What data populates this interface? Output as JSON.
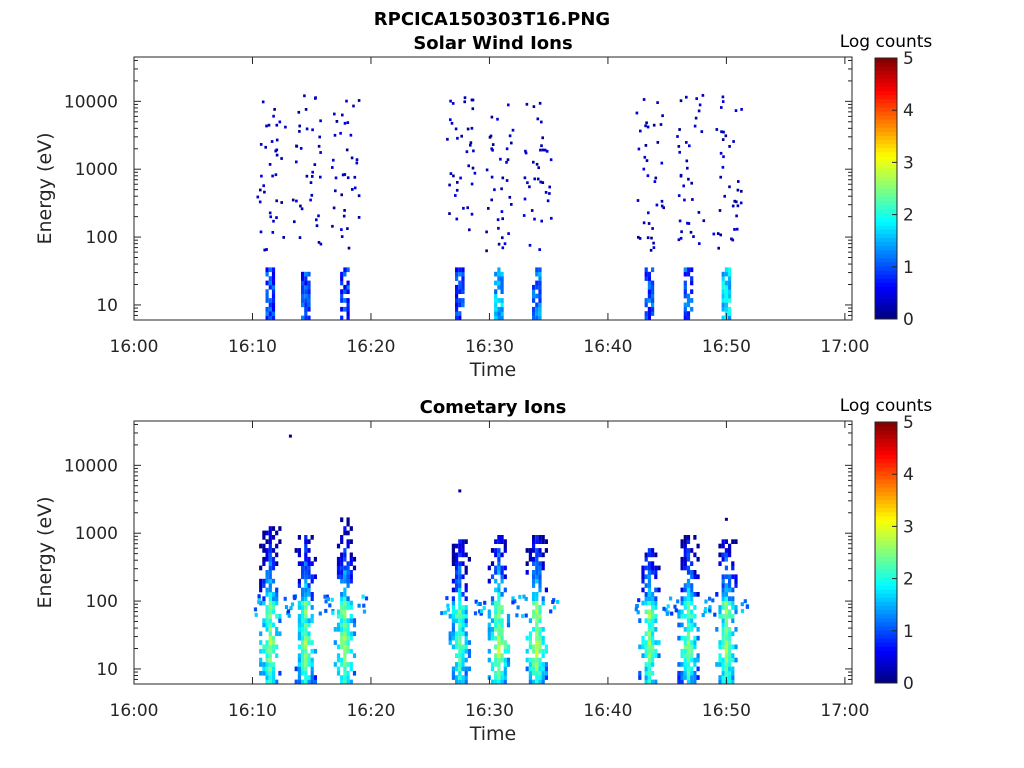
{
  "figure_title": "RPCICA150303T16.PNG",
  "colors": {
    "colormap": "jet",
    "axes": "#262626",
    "background": "#ffffff"
  },
  "chart_data": [
    {
      "type": "heatmap",
      "title": "Solar Wind Ions",
      "xlabel": "Time",
      "ylabel": "Energy (eV)",
      "x_ticks": [
        "16:00",
        "16:10",
        "16:20",
        "16:30",
        "16:40",
        "16:50",
        "17:00"
      ],
      "xlim_minutes_after_16:00": [
        0,
        60.6
      ],
      "y_ticks": [
        "10",
        "100",
        "1000",
        "10000"
      ],
      "yscale": "log",
      "ylim": [
        6,
        45000
      ],
      "colorbar": {
        "label": "Log counts",
        "ticks": [
          "0",
          "1",
          "2",
          "3",
          "4",
          "5"
        ],
        "range": [
          0,
          5
        ]
      },
      "scans": [
        {
          "time_minutes": 11.5,
          "energy_low_eV": [
            6,
            35
          ],
          "low_level_log_counts": 0.9,
          "scatter_eV": [
            60,
            12000
          ]
        },
        {
          "time_minutes": 14.5,
          "energy_low_eV": [
            6,
            35
          ],
          "low_level_log_counts": 0.9,
          "scatter_eV": [
            60,
            12000
          ]
        },
        {
          "time_minutes": 17.8,
          "energy_low_eV": [
            6,
            35
          ],
          "low_level_log_counts": 0.9,
          "scatter_eV": [
            60,
            12000
          ]
        },
        {
          "time_minutes": 27.5,
          "energy_low_eV": [
            6,
            35
          ],
          "low_level_log_counts": 0.9,
          "scatter_eV": [
            60,
            12000
          ]
        },
        {
          "time_minutes": 30.8,
          "energy_low_eV": [
            6,
            35
          ],
          "low_level_log_counts": 1.5,
          "scatter_eV": [
            60,
            12000
          ]
        },
        {
          "time_minutes": 34.0,
          "energy_low_eV": [
            6,
            35
          ],
          "low_level_log_counts": 1.2,
          "scatter_eV": [
            60,
            12000
          ]
        },
        {
          "time_minutes": 43.5,
          "energy_low_eV": [
            6,
            35
          ],
          "low_level_log_counts": 1.0,
          "scatter_eV": [
            60,
            12000
          ]
        },
        {
          "time_minutes": 46.8,
          "energy_low_eV": [
            6,
            35
          ],
          "low_level_log_counts": 1.0,
          "scatter_eV": [
            60,
            12000
          ]
        },
        {
          "time_minutes": 50.0,
          "energy_low_eV": [
            6,
            35
          ],
          "low_level_log_counts": 1.7,
          "scatter_eV": [
            60,
            12000
          ]
        }
      ]
    },
    {
      "type": "heatmap",
      "title": "Cometary Ions",
      "xlabel": "Time",
      "ylabel": "Energy (eV)",
      "x_ticks": [
        "16:00",
        "16:10",
        "16:20",
        "16:30",
        "16:40",
        "16:50",
        "17:00"
      ],
      "xlim_minutes_after_16:00": [
        0,
        60.6
      ],
      "y_ticks": [
        "10",
        "100",
        "1000",
        "10000"
      ],
      "yscale": "log",
      "ylim": [
        6,
        45000
      ],
      "colorbar": {
        "label": "Log counts",
        "ticks": [
          "0",
          "1",
          "2",
          "3",
          "4",
          "5"
        ],
        "range": [
          0,
          5
        ]
      },
      "isolated_points": [
        {
          "time_minutes": 13.2,
          "energy_eV": 27000
        },
        {
          "time_minutes": 27.5,
          "energy_eV": 4200
        },
        {
          "time_minutes": 50.0,
          "energy_eV": 1600
        }
      ],
      "scans": [
        {
          "time_minutes": 11.5,
          "energy_range_eV": [
            6,
            1100
          ],
          "peak_energy_eV": 20,
          "peak_log_counts": 2.7
        },
        {
          "time_minutes": 14.5,
          "energy_range_eV": [
            6,
            900
          ],
          "peak_energy_eV": 20,
          "peak_log_counts": 2.6
        },
        {
          "time_minutes": 17.8,
          "energy_range_eV": [
            6,
            1600
          ],
          "peak_energy_eV": 20,
          "peak_log_counts": 2.7
        },
        {
          "time_minutes": 27.5,
          "energy_range_eV": [
            6,
            800
          ],
          "peak_energy_eV": 20,
          "peak_log_counts": 2.5
        },
        {
          "time_minutes": 30.8,
          "energy_range_eV": [
            6,
            900
          ],
          "peak_energy_eV": 20,
          "peak_log_counts": 2.8
        },
        {
          "time_minutes": 34.0,
          "energy_range_eV": [
            6,
            900
          ],
          "peak_energy_eV": 20,
          "peak_log_counts": 2.8
        },
        {
          "time_minutes": 43.5,
          "energy_range_eV": [
            6,
            600
          ],
          "peak_energy_eV": 20,
          "peak_log_counts": 2.6
        },
        {
          "time_minutes": 46.8,
          "energy_range_eV": [
            6,
            900
          ],
          "peak_energy_eV": 20,
          "peak_log_counts": 2.6
        },
        {
          "time_minutes": 50.0,
          "energy_range_eV": [
            6,
            700
          ],
          "peak_energy_eV": 20,
          "peak_log_counts": 2.7
        }
      ]
    }
  ]
}
